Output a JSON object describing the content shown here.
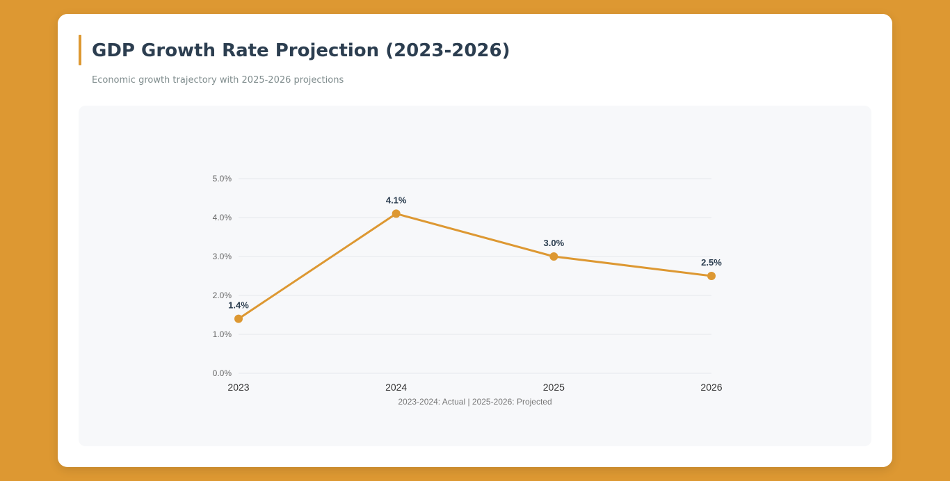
{
  "header": {
    "title": "GDP Growth Rate Projection (2023-2026)",
    "subtitle": "Economic growth trajectory with 2025-2026 projections"
  },
  "colors": {
    "accent": "#dd9832",
    "title": "#2c3e50",
    "panel": "#f7f8fa"
  },
  "chart_data": {
    "type": "line",
    "title": "",
    "xlabel": "",
    "ylabel": "",
    "categories": [
      "2023",
      "2024",
      "2025",
      "2026"
    ],
    "series": [
      {
        "values": [
          1.4,
          4.1,
          3.0,
          2.5
        ],
        "color": "#dd9832"
      }
    ],
    "data_labels": [
      "1.4%",
      "4.1%",
      "3.0%",
      "2.5%"
    ],
    "y_ticks": [
      0,
      1,
      2,
      3,
      4,
      5
    ],
    "y_tick_labels": [
      "0.0%",
      "1.0%",
      "2.0%",
      "3.0%",
      "4.0%",
      "5.0%"
    ],
    "ylim": [
      0,
      5
    ],
    "grid": true,
    "legend": "none",
    "note": "2023-2024: Actual | 2025-2026: Projected"
  }
}
